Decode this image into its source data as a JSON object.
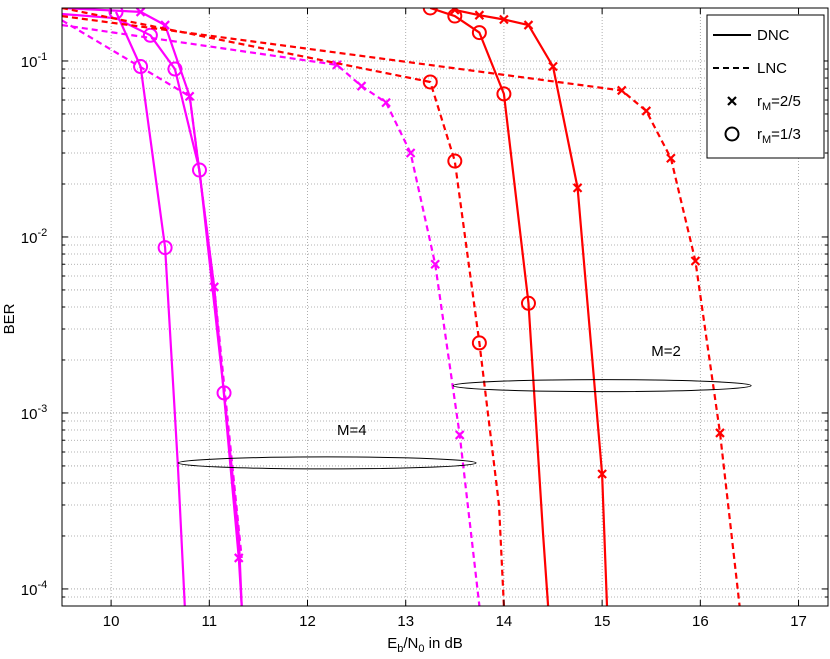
{
  "chart_data": {
    "type": "line",
    "title": "",
    "xlabel": "E_b/N_0 in dB",
    "ylabel": "BER",
    "xlim": [
      9.5,
      17.3
    ],
    "ylim": [
      8e-05,
      0.2
    ],
    "yscale": "log",
    "grid": true,
    "grid_style": "dotted",
    "x_ticks": [
      "10",
      "11",
      "12",
      "13",
      "14",
      "15",
      "16",
      "17"
    ],
    "y_ticks": [
      {
        "base": "10",
        "exp": "-4"
      },
      {
        "base": "10",
        "exp": "-3"
      },
      {
        "base": "10",
        "exp": "-2"
      },
      {
        "base": "10",
        "exp": "-1"
      }
    ],
    "legend_position": "top-right",
    "legend": [
      {
        "label": "DNC",
        "symbol": "solid-line"
      },
      {
        "label": "LNC",
        "symbol": "dashed-line"
      },
      {
        "label_main": "r",
        "label_sub": "M",
        "label_tail": "=2/5",
        "symbol": "x-marker"
      },
      {
        "label_main": "r",
        "label_sub": "M",
        "label_tail": "=1/3",
        "symbol": "o-marker"
      }
    ],
    "annotations": [
      {
        "text": "M=4",
        "x": 12.3,
        "y": 0.00075,
        "ellipse_center": [
          12.2,
          0.00052
        ]
      },
      {
        "text": "M=2",
        "x": 15.5,
        "y": 0.0021,
        "ellipse_center": [
          15.0,
          0.00143
        ]
      }
    ],
    "series": [
      {
        "color": "#ff00ff",
        "linestyle": "solid",
        "marker": "o",
        "x": [
          10.05,
          10.3,
          10.55,
          10.68,
          10.75
        ],
        "y": [
          0.19,
          0.093,
          0.0087,
          0.0005,
          8e-05
        ],
        "markers": [
          true,
          true,
          true,
          false,
          false
        ]
      },
      {
        "color": "#ff00ff",
        "linestyle": "solid",
        "marker": "o",
        "x": [
          9.5,
          10.05,
          10.4,
          10.65,
          10.9,
          11.15,
          11.3,
          11.33
        ],
        "y": [
          0.185,
          0.175,
          0.14,
          0.09,
          0.024,
          0.0013,
          0.0002,
          8e-05
        ],
        "markers": [
          false,
          false,
          true,
          true,
          true,
          true,
          false,
          false
        ]
      },
      {
        "color": "#ff00ff",
        "linestyle": "solid",
        "marker": "x",
        "x": [
          9.5,
          10.3,
          10.55,
          10.8,
          11.05,
          11.3,
          11.33
        ],
        "y": [
          0.2,
          0.19,
          0.16,
          0.063,
          0.0052,
          0.00015,
          8e-05
        ],
        "markers": [
          false,
          true,
          true,
          true,
          true,
          true,
          false
        ]
      },
      {
        "color": "#ff00ff",
        "linestyle": "dashed",
        "marker": "x",
        "x": [
          9.5,
          10.8,
          11.05,
          11.33
        ],
        "y": [
          0.17,
          0.063,
          0.0052,
          0.00015
        ],
        "markers": [
          false,
          false,
          false,
          false
        ]
      },
      {
        "color": "#ff00ff",
        "linestyle": "dashed",
        "marker": "x",
        "x": [
          9.5,
          12.3,
          12.55,
          12.8,
          13.05,
          13.3,
          13.55,
          13.75
        ],
        "y": [
          0.16,
          0.095,
          0.072,
          0.058,
          0.03,
          0.007,
          0.00075,
          8e-05
        ],
        "markers": [
          false,
          true,
          true,
          true,
          true,
          true,
          true,
          false
        ]
      },
      {
        "color": "#ff0000",
        "linestyle": "solid",
        "marker": "o",
        "x": [
          13.25,
          13.5,
          13.75,
          14.0,
          14.25,
          14.4,
          14.45
        ],
        "y": [
          0.2,
          0.18,
          0.145,
          0.065,
          0.0042,
          0.0002,
          8e-05
        ],
        "markers": [
          true,
          true,
          true,
          true,
          true,
          false,
          false
        ]
      },
      {
        "color": "#ff0000",
        "linestyle": "solid",
        "marker": "x",
        "x": [
          13.5,
          13.75,
          14.0,
          14.25,
          14.5,
          14.75,
          15.0,
          15.05
        ],
        "y": [
          0.195,
          0.182,
          0.172,
          0.16,
          0.093,
          0.019,
          0.00045,
          8e-05
        ],
        "markers": [
          true,
          true,
          true,
          true,
          true,
          true,
          true,
          false
        ]
      },
      {
        "color": "#ff0000",
        "linestyle": "dashed",
        "marker": "o",
        "x": [
          9.5,
          13.25,
          13.5,
          13.75,
          13.95,
          14.0
        ],
        "y": [
          0.2,
          0.076,
          0.027,
          0.0025,
          0.0003,
          8e-05
        ],
        "markers": [
          false,
          true,
          true,
          true,
          false,
          false
        ]
      },
      {
        "color": "#ff0000",
        "linestyle": "dashed",
        "marker": "x",
        "x": [
          9.5,
          15.2,
          15.45,
          15.7,
          15.95,
          16.2,
          16.4
        ],
        "y": [
          0.18,
          0.068,
          0.052,
          0.028,
          0.0073,
          0.00077,
          8e-05
        ],
        "markers": [
          false,
          true,
          true,
          true,
          true,
          true,
          false
        ]
      }
    ]
  }
}
